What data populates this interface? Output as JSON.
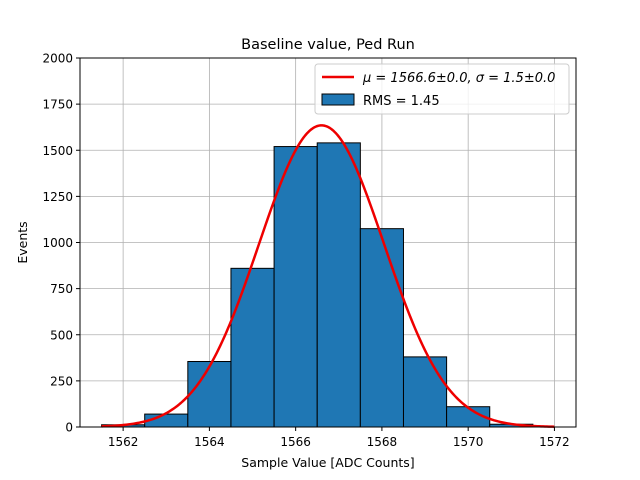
{
  "chart_data": {
    "type": "bar",
    "title": "Baseline value, Ped Run",
    "xlabel": "Sample Value [ADC Counts]",
    "ylabel": "Events",
    "xlim": [
      1561.0,
      1572.5
    ],
    "ylim": [
      0,
      2000
    ],
    "xticks": [
      1562,
      1564,
      1566,
      1568,
      1570,
      1572
    ],
    "yticks": [
      0,
      250,
      500,
      750,
      1000,
      1250,
      1500,
      1750,
      2000
    ],
    "grid": true,
    "legend_position": "top-right",
    "histogram": {
      "name": "RMS = 1.45",
      "color": "#1f77b4",
      "edge_color": "#000000",
      "bins": [
        {
          "x0": 1561.5,
          "x1": 1562.5,
          "value": 12
        },
        {
          "x0": 1562.5,
          "x1": 1563.5,
          "value": 70
        },
        {
          "x0": 1563.5,
          "x1": 1564.5,
          "value": 355
        },
        {
          "x0": 1564.5,
          "x1": 1565.5,
          "value": 860
        },
        {
          "x0": 1565.5,
          "x1": 1566.5,
          "value": 1520
        },
        {
          "x0": 1566.5,
          "x1": 1567.5,
          "value": 1540
        },
        {
          "x0": 1567.5,
          "x1": 1568.5,
          "value": 1075
        },
        {
          "x0": 1568.5,
          "x1": 1569.5,
          "value": 380
        },
        {
          "x0": 1569.5,
          "x1": 1570.5,
          "value": 110
        },
        {
          "x0": 1570.5,
          "x1": 1571.5,
          "value": 15
        }
      ]
    },
    "fit": {
      "name": "μ = 1566.6±0.0, σ = 1.5±0.0",
      "color": "#ee0000",
      "type": "gaussian",
      "mu": 1566.6,
      "sigma": 1.45,
      "amplitude": 1635,
      "x_range": [
        1561.5,
        1572.0
      ]
    }
  }
}
